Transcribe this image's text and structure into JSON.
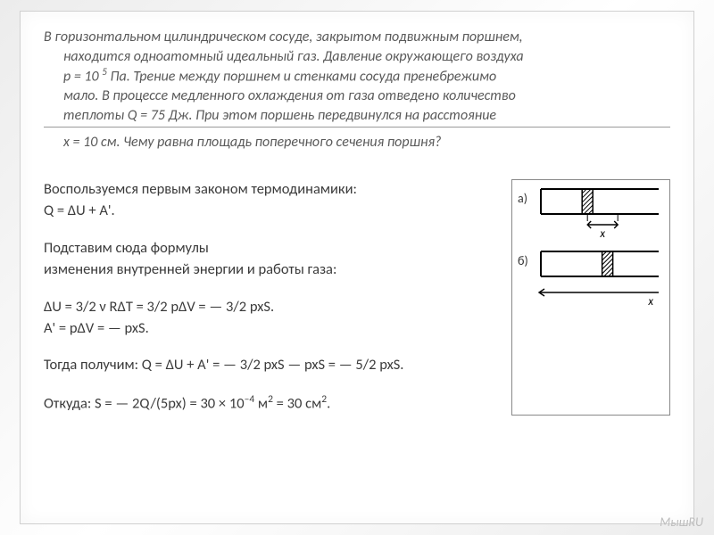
{
  "problem": {
    "line1": "В горизонтальном цилиндрическом сосуде, закрытом подвижным поршнем,",
    "line2": "находится одноатомный идеальный газ. Давление окружающего воздуха",
    "line3_pre": "р = 10 ",
    "line3_sup": "5",
    "line3_post": " Па. Трение между поршнем и стенками сосуда пренебрежимо",
    "line4": "мало.  В процессе медленного охлаждения от газа отведено количество",
    "line5": "теплоты Q = 75 Дж. При этом поршень передвинулся на расстояние",
    "line6": "х = 10 см. Чему равна площадь поперечного сечения поршня?"
  },
  "solution": {
    "s1": "Воспользуемся первым законом термодинамики:",
    "s2": "Q = ΔU + A'.",
    "s3": "Подставим сюда формулы",
    "s4": "изменения внутренней энергии и работы газа:",
    "s5": "ΔU = 3/2 ν RΔT = 3/2  pΔV = — 3/2  pxS.",
    "s6": "A' = pΔV = — pxS.",
    "s7": "Тогда получим:  Q = ΔU + A' = — 3/2  pxS — pxS = — 5/2 pxS.",
    "s8a": "Откуда:    S = — 2Q/(5px) = 30 × 10",
    "s8sup": "–4",
    "s8b": " м",
    "s8sup2": "2",
    "s8c": " = 30 см",
    "s8sup3": "2",
    "s8d": "."
  },
  "figure": {
    "label_a": "а)",
    "label_b": "б)",
    "x_sym": "x",
    "stroke": "#000000",
    "fill": "#ffffff",
    "hatch": "#000000",
    "width": 140,
    "cyl_h": 28,
    "piston_w": 12
  },
  "watermark": "МышRU"
}
